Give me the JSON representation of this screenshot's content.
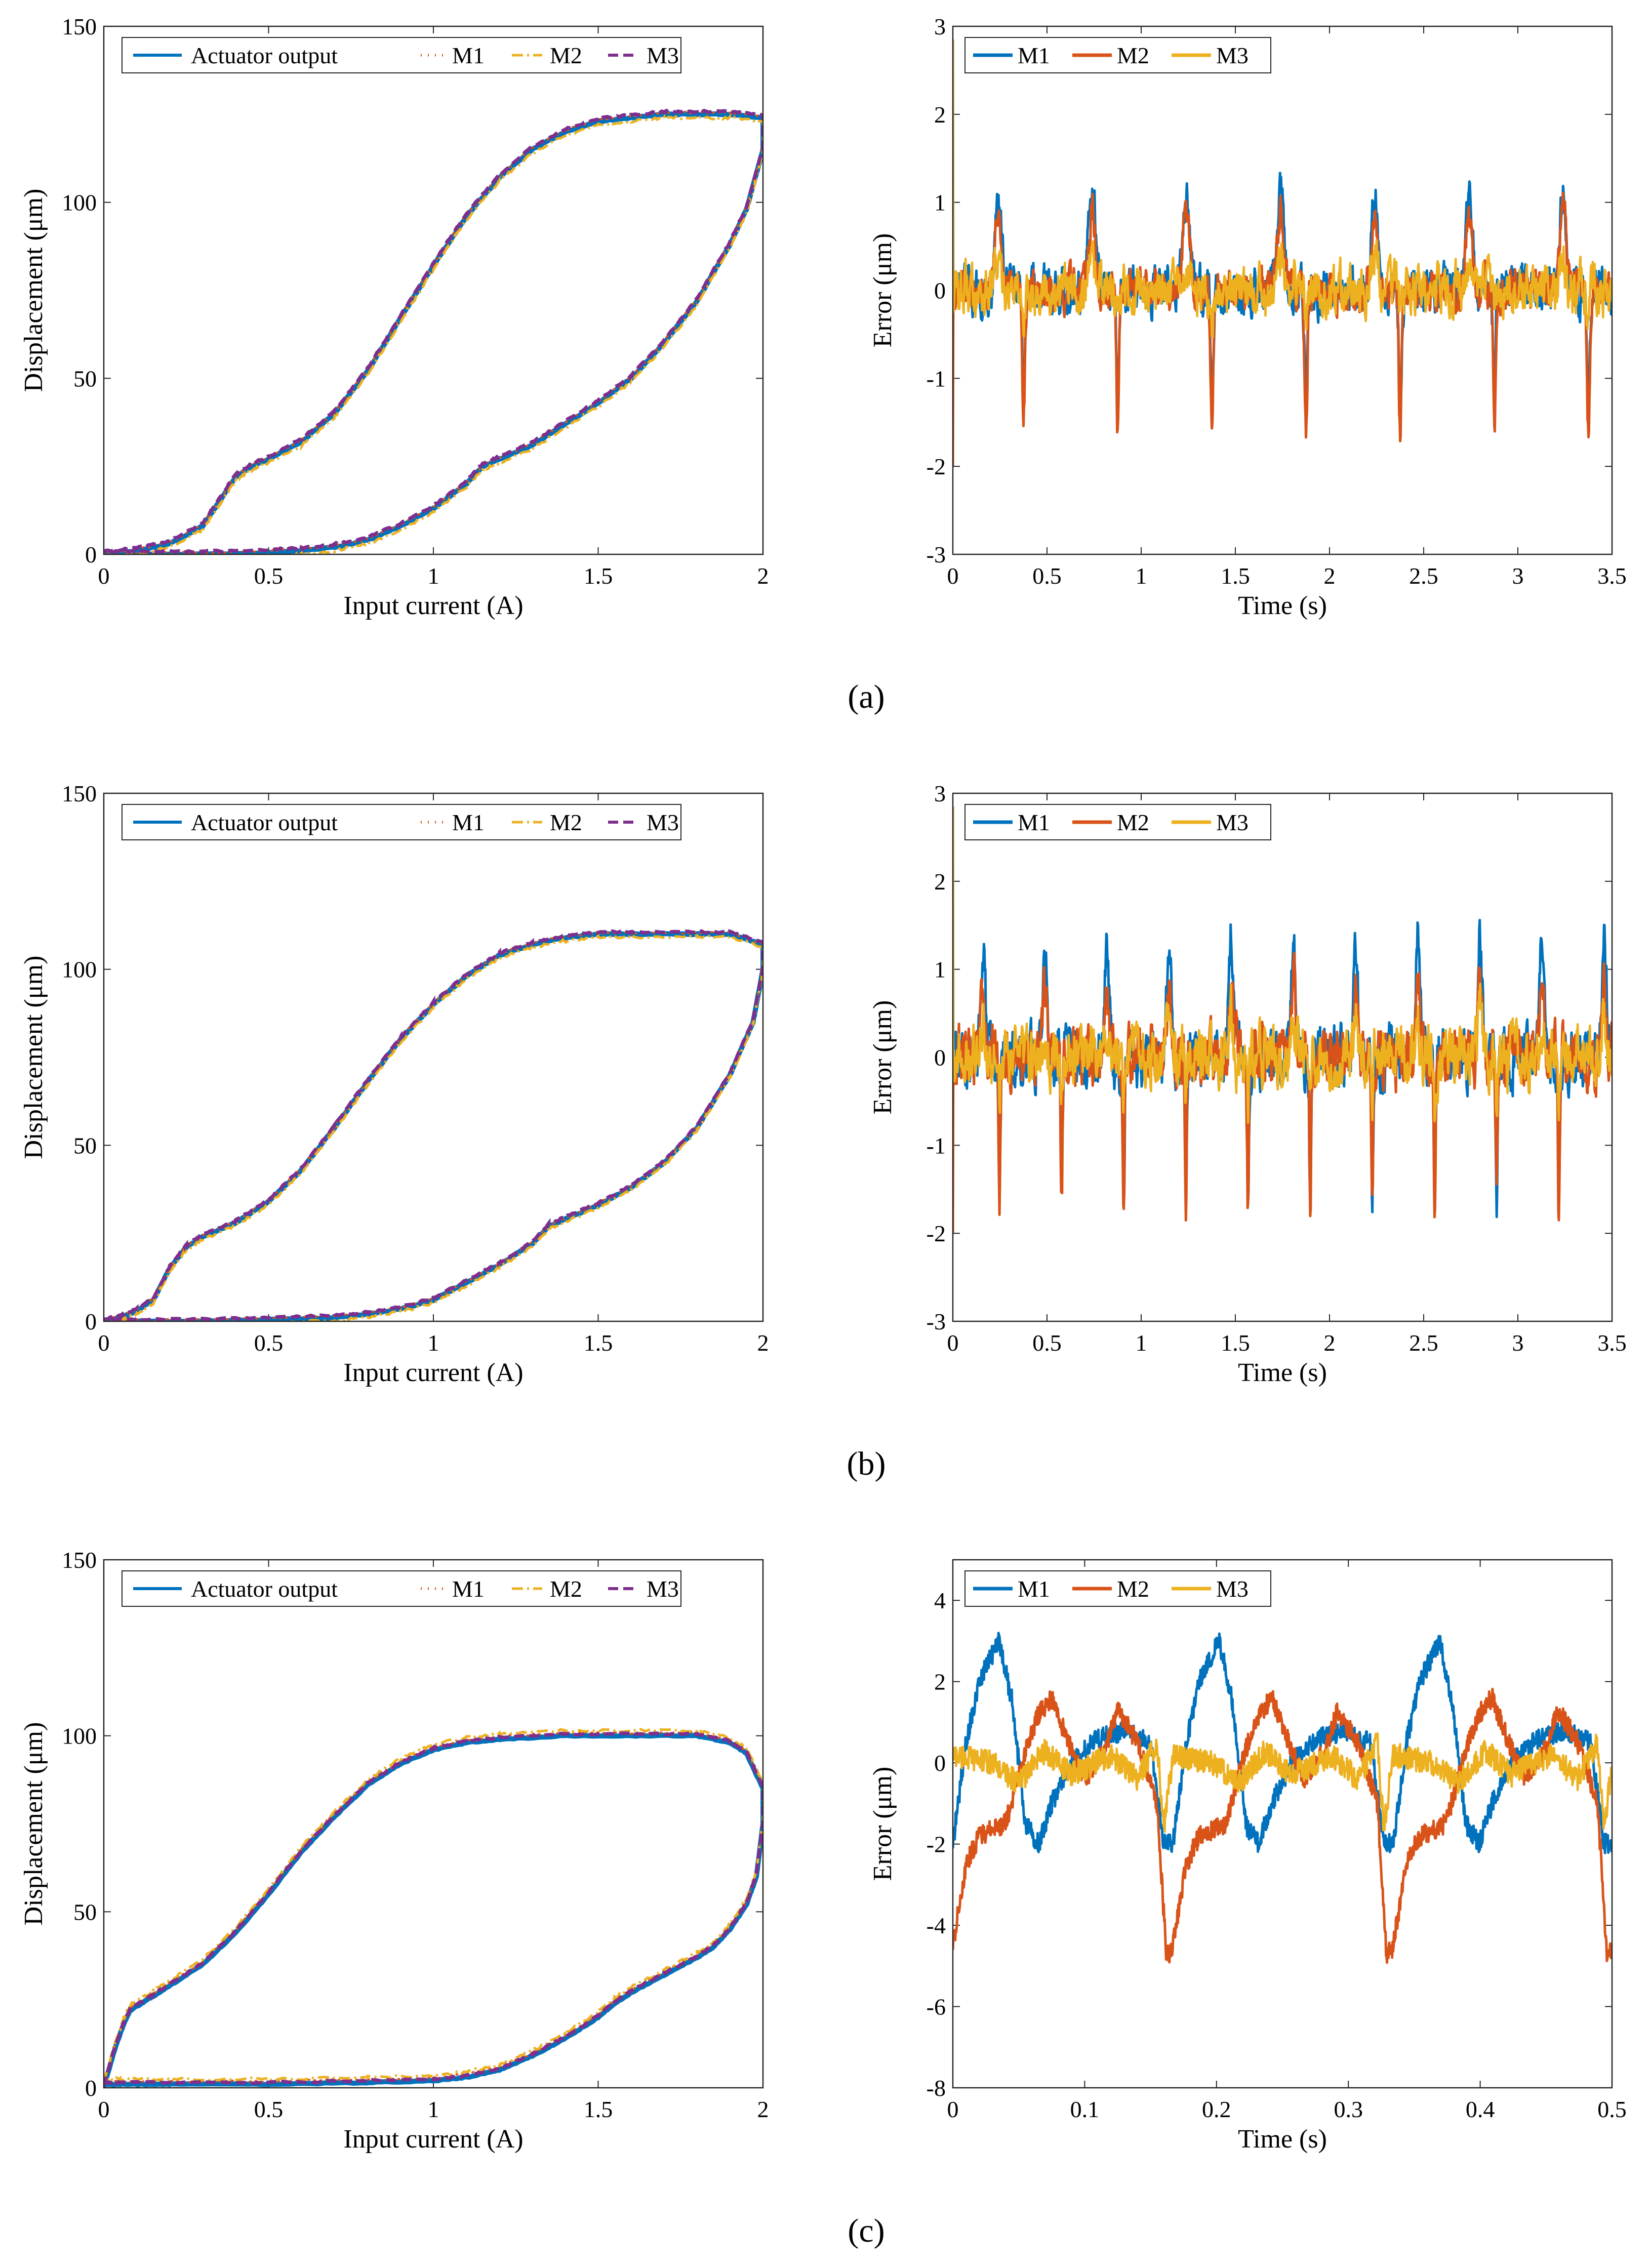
{
  "figure": {
    "colors": {
      "actuator": "#0072BD",
      "m1_hyst": "#D95319",
      "m2_hyst": "#EDB120",
      "m3_hyst": "#7E2F8E",
      "m1_err": "#0072BD",
      "m2_err": "#D95319",
      "m3_err": "#EDB120"
    }
  },
  "chart_data": [
    {
      "id": "a-left",
      "type": "line",
      "panel_label": "(a)",
      "xlabel": "Input current (A)",
      "ylabel": "Displacement (μm)",
      "xlim": [
        0,
        2
      ],
      "ylim": [
        0,
        150
      ],
      "xticks": [
        "0",
        "0.5",
        "1",
        "1.5",
        "2"
      ],
      "yticks": [
        "0",
        "50",
        "100",
        "150"
      ],
      "legend": {
        "placement": "top",
        "entries": [
          "Actuator output",
          "M1",
          "M2",
          "M3"
        ]
      },
      "hysteresis": {
        "ascending": [
          [
            0,
            0
          ],
          [
            0.1,
            1
          ],
          [
            0.2,
            3
          ],
          [
            0.3,
            8
          ],
          [
            0.35,
            15
          ],
          [
            0.4,
            22
          ],
          [
            0.45,
            25
          ],
          [
            0.5,
            27
          ],
          [
            0.6,
            32
          ],
          [
            0.7,
            40
          ],
          [
            0.8,
            52
          ],
          [
            0.9,
            67
          ],
          [
            1.0,
            82
          ],
          [
            1.1,
            96
          ],
          [
            1.2,
            107
          ],
          [
            1.3,
            115
          ],
          [
            1.4,
            120
          ],
          [
            1.5,
            123
          ],
          [
            1.6,
            124
          ],
          [
            1.7,
            125
          ],
          [
            1.8,
            125
          ],
          [
            1.9,
            125
          ],
          [
            2.0,
            124
          ]
        ],
        "descending": [
          [
            2.0,
            115
          ],
          [
            1.95,
            98
          ],
          [
            1.9,
            88
          ],
          [
            1.8,
            72
          ],
          [
            1.7,
            60
          ],
          [
            1.6,
            50
          ],
          [
            1.5,
            43
          ],
          [
            1.4,
            37
          ],
          [
            1.3,
            31
          ],
          [
            1.2,
            27
          ],
          [
            1.15,
            25
          ],
          [
            1.1,
            20
          ],
          [
            1.0,
            13
          ],
          [
            0.9,
            8
          ],
          [
            0.8,
            4
          ],
          [
            0.7,
            2
          ],
          [
            0.6,
            1
          ],
          [
            0.5,
            0.5
          ],
          [
            0.3,
            0
          ],
          [
            0.1,
            0
          ],
          [
            0,
            0
          ]
        ]
      },
      "model_offsets": {
        "M1": 0.5,
        "M2": -1.0,
        "M3": 0.8
      }
    },
    {
      "id": "a-right",
      "type": "line",
      "xlabel": "Time (s)",
      "ylabel": "Error (μm)",
      "xlim": [
        0,
        3.5
      ],
      "ylim": [
        -3,
        3
      ],
      "xticks": [
        "0",
        "0.5",
        "1",
        "1.5",
        "2",
        "2.5",
        "3",
        "3.5"
      ],
      "yticks": [
        "-3",
        "-2",
        "-1",
        "0",
        "1",
        "2",
        "3"
      ],
      "legend": {
        "placement": "top-left",
        "entries": [
          "M1",
          "M2",
          "M3"
        ]
      },
      "error_traces": {
        "period": 0.5,
        "series": [
          {
            "name": "M1",
            "noise": 0.3,
            "peak": 1.1,
            "dip": -1.3
          },
          {
            "name": "M2",
            "noise": 0.25,
            "peak": 0.9,
            "dip": -1.6
          },
          {
            "name": "M3",
            "noise": 0.32,
            "peak": 0.25,
            "dip": -0.4
          }
        ]
      }
    },
    {
      "id": "b-left",
      "type": "line",
      "panel_label": "(b)",
      "xlabel": "Input current (A)",
      "ylabel": "Displacement (μm)",
      "xlim": [
        0,
        2
      ],
      "ylim": [
        0,
        150
      ],
      "xticks": [
        "0",
        "0.5",
        "1",
        "1.5",
        "2"
      ],
      "yticks": [
        "0",
        "50",
        "100",
        "150"
      ],
      "legend": {
        "placement": "top",
        "entries": [
          "Actuator output",
          "M1",
          "M2",
          "M3"
        ]
      },
      "hysteresis": {
        "ascending": [
          [
            0,
            0
          ],
          [
            0.05,
            1
          ],
          [
            0.1,
            3
          ],
          [
            0.15,
            6
          ],
          [
            0.2,
            15
          ],
          [
            0.25,
            21
          ],
          [
            0.3,
            24
          ],
          [
            0.4,
            28
          ],
          [
            0.5,
            34
          ],
          [
            0.6,
            43
          ],
          [
            0.7,
            55
          ],
          [
            0.8,
            68
          ],
          [
            0.9,
            80
          ],
          [
            1.0,
            90
          ],
          [
            1.1,
            98
          ],
          [
            1.2,
            104
          ],
          [
            1.3,
            107
          ],
          [
            1.4,
            109
          ],
          [
            1.5,
            110
          ],
          [
            1.6,
            110
          ],
          [
            1.8,
            110
          ],
          [
            1.9,
            110
          ],
          [
            2.0,
            107
          ]
        ],
        "descending": [
          [
            2.0,
            100
          ],
          [
            1.97,
            85
          ],
          [
            1.9,
            70
          ],
          [
            1.8,
            55
          ],
          [
            1.7,
            45
          ],
          [
            1.6,
            38
          ],
          [
            1.5,
            33
          ],
          [
            1.4,
            29
          ],
          [
            1.35,
            27
          ],
          [
            1.3,
            22
          ],
          [
            1.2,
            16
          ],
          [
            1.1,
            11
          ],
          [
            1.0,
            6
          ],
          [
            0.9,
            3.5
          ],
          [
            0.8,
            2
          ],
          [
            0.7,
            1
          ],
          [
            0.5,
            0.5
          ],
          [
            0.3,
            0
          ],
          [
            0.1,
            0
          ],
          [
            0,
            0
          ]
        ]
      },
      "model_offsets": {
        "M1": 0.4,
        "M2": -0.8,
        "M3": 0.6
      }
    },
    {
      "id": "b-right",
      "type": "line",
      "xlabel": "Time (s)",
      "ylabel": "Error (μm)",
      "xlim": [
        0,
        3.5
      ],
      "ylim": [
        -3,
        3
      ],
      "xticks": [
        "0",
        "0.5",
        "1",
        "1.5",
        "2",
        "2.5",
        "3",
        "3.5"
      ],
      "yticks": [
        "-3",
        "-2",
        "-1",
        "0",
        "1",
        "2",
        "3"
      ],
      "legend": {
        "placement": "top-left",
        "entries": [
          "M1",
          "M2",
          "M3"
        ]
      },
      "error_traces": {
        "period": 0.33,
        "series": [
          {
            "name": "M1",
            "noise": 0.38,
            "peak": 1.4,
            "dip": -1.6
          },
          {
            "name": "M2",
            "noise": 0.38,
            "peak": 0.8,
            "dip": -1.7
          },
          {
            "name": "M3",
            "noise": 0.38,
            "peak": 0.4,
            "dip": -0.5
          }
        ]
      }
    },
    {
      "id": "c-left",
      "type": "line",
      "panel_label": "(c)",
      "xlabel": "Input current (A)",
      "ylabel": "Displacement (μm)",
      "xlim": [
        0,
        2
      ],
      "ylim": [
        0,
        150
      ],
      "xticks": [
        "0",
        "0.5",
        "1",
        "1.5",
        "2"
      ],
      "yticks": [
        "0",
        "50",
        "100",
        "150"
      ],
      "legend": {
        "placement": "top",
        "entries": [
          "Actuator output",
          "M1",
          "M2",
          "M3"
        ]
      },
      "hysteresis": {
        "ascending": [
          [
            0,
            0
          ],
          [
            0.03,
            10
          ],
          [
            0.06,
            18
          ],
          [
            0.08,
            22
          ],
          [
            0.15,
            26
          ],
          [
            0.2,
            29
          ],
          [
            0.3,
            35
          ],
          [
            0.4,
            44
          ],
          [
            0.5,
            55
          ],
          [
            0.6,
            67
          ],
          [
            0.7,
            77
          ],
          [
            0.8,
            86
          ],
          [
            0.9,
            92
          ],
          [
            1.0,
            96
          ],
          [
            1.1,
            98
          ],
          [
            1.2,
            99
          ],
          [
            1.4,
            100
          ],
          [
            1.6,
            100
          ],
          [
            1.8,
            100
          ],
          [
            1.9,
            98
          ],
          [
            1.95,
            95
          ],
          [
            2.0,
            85
          ]
        ],
        "descending": [
          [
            2.0,
            75
          ],
          [
            1.98,
            60
          ],
          [
            1.95,
            52
          ],
          [
            1.9,
            45
          ],
          [
            1.85,
            40
          ],
          [
            1.8,
            37
          ],
          [
            1.7,
            32
          ],
          [
            1.6,
            27
          ],
          [
            1.55,
            24
          ],
          [
            1.5,
            20
          ],
          [
            1.4,
            14
          ],
          [
            1.3,
            9
          ],
          [
            1.2,
            5
          ],
          [
            1.1,
            3
          ],
          [
            1.0,
            2
          ],
          [
            0.8,
            1.5
          ],
          [
            0.5,
            1
          ],
          [
            0.2,
            1
          ],
          [
            0.05,
            1
          ],
          [
            0,
            1
          ]
        ]
      },
      "model_offsets": {
        "M1": 0.8,
        "M2": 1.5,
        "M3": 0.5
      }
    },
    {
      "id": "c-right",
      "type": "line",
      "xlabel": "Time (s)",
      "ylabel": "Error (μm)",
      "xlim": [
        0,
        0.5
      ],
      "ylim": [
        -8,
        5
      ],
      "xticks": [
        "0",
        "0.1",
        "0.2",
        "0.3",
        "0.4",
        "0.5"
      ],
      "yticks": [
        "-8",
        "-6",
        "-4",
        "-2",
        "0",
        "2",
        "4"
      ],
      "legend": {
        "placement": "top-left",
        "entries": [
          "M1",
          "M2",
          "M3"
        ]
      },
      "error_traces": {
        "period": 0.167,
        "series": [
          {
            "name": "M1",
            "noise": 0.25,
            "shape": [
              [
                0,
                -2
              ],
              [
                0.01,
                0.5
              ],
              [
                0.02,
                2
              ],
              [
                0.035,
                3
              ],
              [
                0.045,
                1.5
              ],
              [
                0.055,
                -1.5
              ],
              [
                0.065,
                -2
              ],
              [
                0.075,
                -1
              ],
              [
                0.09,
                0
              ],
              [
                0.11,
                0.6
              ],
              [
                0.13,
                0.8
              ],
              [
                0.15,
                0.5
              ],
              [
                0.16,
                -2
              ],
              [
                0.167,
                -2
              ]
            ]
          },
          {
            "name": "M2",
            "noise": 0.25,
            "shape": [
              [
                0,
                -4.5
              ],
              [
                0.01,
                -2.5
              ],
              [
                0.02,
                -1.8
              ],
              [
                0.04,
                -1.5
              ],
              [
                0.055,
                0.3
              ],
              [
                0.065,
                1.2
              ],
              [
                0.075,
                1.6
              ],
              [
                0.09,
                0.3
              ],
              [
                0.1,
                -0.4
              ],
              [
                0.115,
                0.3
              ],
              [
                0.125,
                1.3
              ],
              [
                0.14,
                0.5
              ],
              [
                0.155,
                -1
              ],
              [
                0.162,
                -4.8
              ],
              [
                0.167,
                -4.5
              ]
            ]
          },
          {
            "name": "M3",
            "noise": 0.3,
            "shape": [
              [
                0,
                0.2
              ],
              [
                0.03,
                0
              ],
              [
                0.05,
                -0.5
              ],
              [
                0.07,
                0.3
              ],
              [
                0.09,
                -0.3
              ],
              [
                0.12,
                0.2
              ],
              [
                0.14,
                -0.4
              ],
              [
                0.155,
                0.5
              ],
              [
                0.16,
                -1.6
              ],
              [
                0.167,
                0.2
              ]
            ]
          }
        ]
      }
    }
  ]
}
